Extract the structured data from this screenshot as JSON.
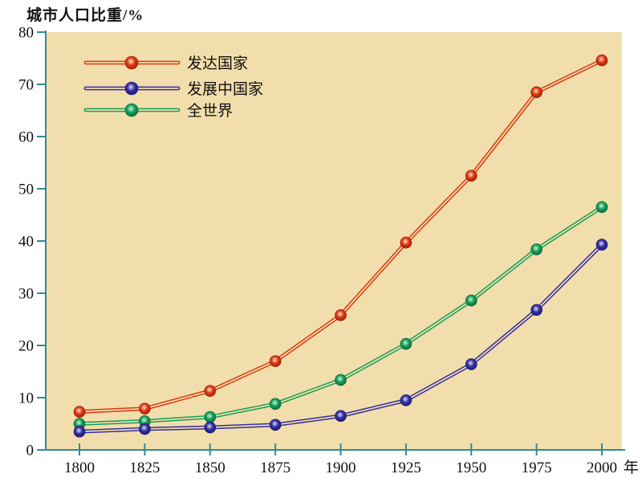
{
  "page": {
    "title": "城市人口比重/%"
  },
  "colors": {
    "background": "#ffffff",
    "plot_background": "#f2deac",
    "axis": "#2e8a9c",
    "text": "#111111"
  },
  "chart_data": {
    "type": "line",
    "title": "城市人口比重/%",
    "ylabel": "城市人口比重/%",
    "xlabel_unit": "年",
    "x": [
      1800,
      1825,
      1850,
      1875,
      1900,
      1925,
      1950,
      1975,
      2000
    ],
    "ylim": [
      0,
      80
    ],
    "ytick_step": 10,
    "grid": false,
    "legend_position": "top-left-inside",
    "series": [
      {
        "name": "发达国家",
        "color": "#dc3a12",
        "ball_light": "#ffe3cf",
        "ball_dark": "#a01600",
        "values": [
          7.3,
          7.9,
          11.3,
          17.0,
          25.8,
          39.7,
          52.5,
          68.5,
          74.6
        ]
      },
      {
        "name": "发展中国家",
        "color": "#342e9e",
        "ball_light": "#ddd9f6",
        "ball_dark": "#191470",
        "values": [
          3.5,
          4.0,
          4.3,
          4.8,
          6.5,
          9.5,
          16.4,
          26.8,
          39.3
        ]
      },
      {
        "name": "全世界",
        "color": "#12a058",
        "ball_light": "#d2f0da",
        "ball_dark": "#076234",
        "values": [
          5.0,
          5.5,
          6.3,
          8.8,
          13.4,
          20.3,
          28.6,
          38.4,
          46.5
        ]
      }
    ]
  }
}
